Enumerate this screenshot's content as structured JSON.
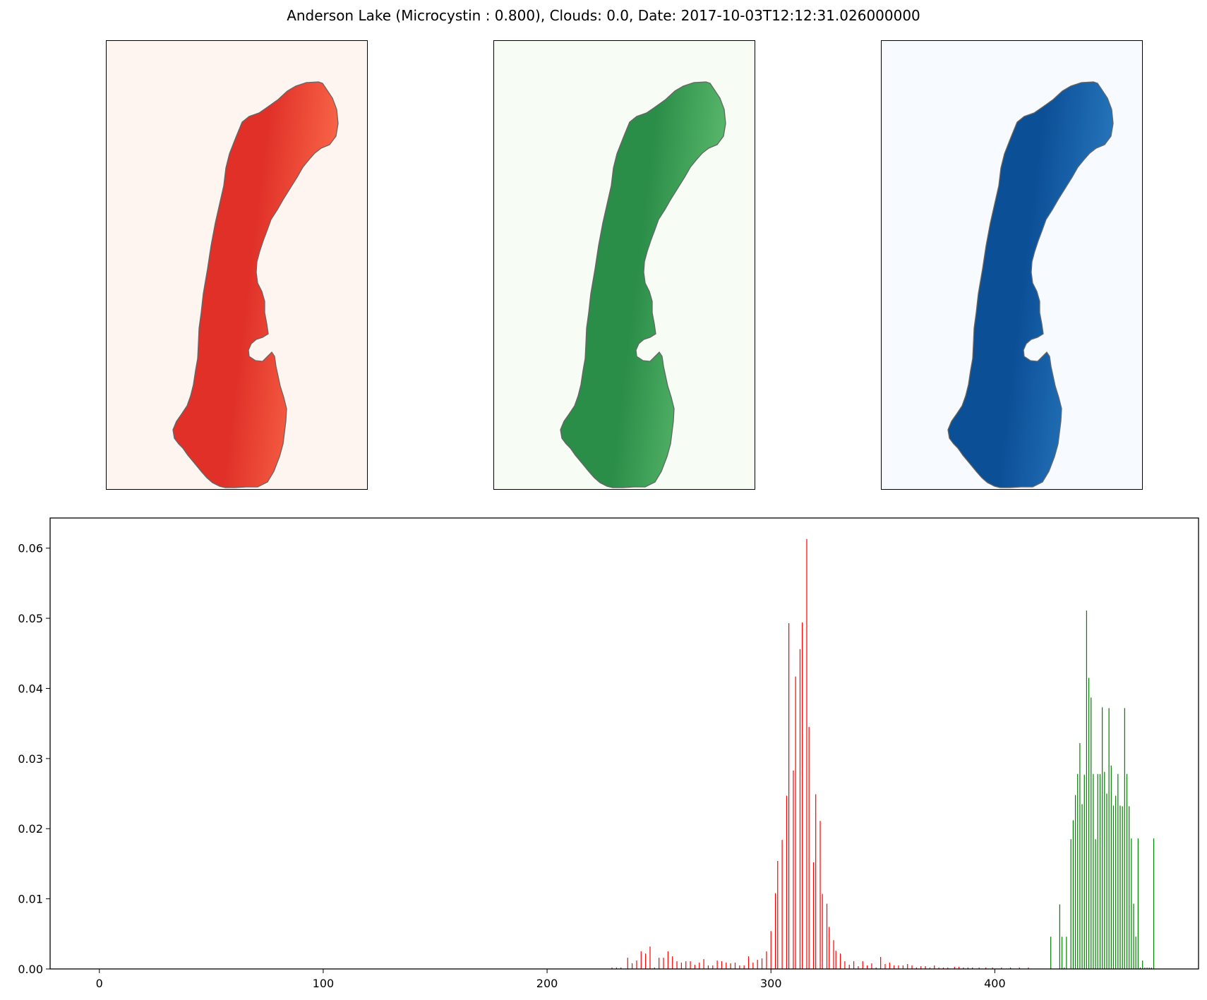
{
  "title": "Anderson Lake (Microcystin : 0.800), Clouds: 0.0, Date: 2017-10-03T12:12:31.026000000",
  "panels": [
    {
      "channel": "red",
      "background": "#fff5f0",
      "fill": "#e03028",
      "edge_light": "#fb6a4a",
      "edge_dark": "#67000d"
    },
    {
      "channel": "green",
      "background": "#f7fcf5",
      "fill": "#2a8d48",
      "edge_light": "#5dbb6e",
      "edge_dark": "#00441b"
    },
    {
      "channel": "blue",
      "background": "#f7fbff",
      "fill": "#0b4f97",
      "edge_light": "#2878be",
      "edge_dark": "#08306b"
    }
  ],
  "chart_data": {
    "type": "bar",
    "xlim": [
      -22,
      491
    ],
    "ylim": [
      0,
      0.0643
    ],
    "xticks": [
      0,
      100,
      200,
      300,
      400
    ],
    "yticks": [
      0.0,
      0.01,
      0.02,
      0.03,
      0.04,
      0.05,
      0.06
    ],
    "xtick_labels": [
      "0",
      "100",
      "200",
      "300",
      "400"
    ],
    "ytick_labels": [
      "0.00",
      "0.01",
      "0.02",
      "0.03",
      "0.04",
      "0.05",
      "0.06"
    ],
    "series": [
      {
        "color": "#ff0000",
        "x": [
          229,
          231,
          233,
          236,
          238,
          240,
          242,
          244,
          246,
          248,
          250,
          252,
          254,
          256,
          258,
          260,
          262,
          264,
          266,
          268,
          270,
          272,
          274,
          276,
          278,
          280,
          282,
          284,
          286,
          288,
          290,
          292,
          294,
          296,
          298,
          300,
          302,
          303,
          305,
          307,
          308,
          310,
          311,
          313,
          314,
          316,
          317,
          319,
          320,
          322,
          323,
          325,
          326,
          328,
          329,
          331,
          333,
          335,
          337,
          339,
          341,
          343,
          345,
          347,
          349,
          351,
          353,
          355,
          357,
          359,
          361,
          363,
          365,
          367,
          369,
          371,
          373,
          375,
          377,
          379,
          382,
          384,
          386,
          388,
          390,
          393,
          396,
          399,
          403,
          407,
          411,
          415
        ],
        "values": [
          0.0002,
          0.0002,
          0.0002,
          0.0016,
          0.0008,
          0.0012,
          0.0025,
          0.0022,
          0.0032,
          0.0002,
          0.0016,
          0.0016,
          0.0025,
          0.0018,
          0.0011,
          0.0009,
          0.0011,
          0.0011,
          0.0006,
          0.0009,
          0.0014,
          0.0005,
          0.0005,
          0.0012,
          0.0011,
          0.0009,
          0.0008,
          0.0009,
          0.0005,
          0.0005,
          0.0018,
          0.0009,
          0.0013,
          0.0015,
          0.0025,
          0.0054,
          0.0108,
          0.0154,
          0.0184,
          0.0247,
          0.0493,
          0.0283,
          0.0417,
          0.0456,
          0.0494,
          0.0613,
          0.0345,
          0.0152,
          0.0249,
          0.0211,
          0.0107,
          0.0093,
          0.006,
          0.0041,
          0.0026,
          0.0022,
          0.0011,
          0.0006,
          0.0011,
          0.0004,
          0.0011,
          0.0005,
          0.0008,
          0.0002,
          0.0017,
          0.0007,
          0.0009,
          0.0005,
          0.0005,
          0.0005,
          0.0007,
          0.0005,
          0.0002,
          0.0004,
          0.0004,
          0.0002,
          0.0005,
          0.0002,
          0.0002,
          0.0002,
          0.0003,
          0.0003,
          0.0002,
          0.0002,
          0.0002,
          0.0002,
          0.0002,
          0.0002,
          0.0002,
          0.0002,
          0.0002,
          0.0002
        ]
      },
      {
        "color": "#008000",
        "x": [
          425,
          429,
          430,
          431,
          432,
          434,
          435,
          436,
          437,
          438,
          439,
          440,
          441,
          442,
          443,
          444,
          445,
          446,
          447,
          448,
          449,
          450,
          451,
          452,
          453,
          454,
          455,
          456,
          457,
          458,
          459,
          460,
          461,
          462,
          463,
          464,
          465,
          466,
          467,
          468,
          469,
          470,
          471
        ],
        "values": [
          0.0046,
          0.0092,
          0.0046,
          0.0002,
          0.0046,
          0.0185,
          0.0212,
          0.0248,
          0.0278,
          0.0322,
          0.0235,
          0.0277,
          0.0511,
          0.0415,
          0.0387,
          0.0278,
          0.0185,
          0.0278,
          0.0278,
          0.0373,
          0.0281,
          0.025,
          0.0372,
          0.029,
          0.0233,
          0.0247,
          0.0278,
          0.0233,
          0.0232,
          0.0372,
          0.0278,
          0.0232,
          0.0186,
          0.0093,
          0.0046,
          0.0186,
          0.0002,
          0.0012,
          0.0002,
          0.0002,
          0.0002,
          0.0002,
          0.0186
        ]
      }
    ]
  }
}
